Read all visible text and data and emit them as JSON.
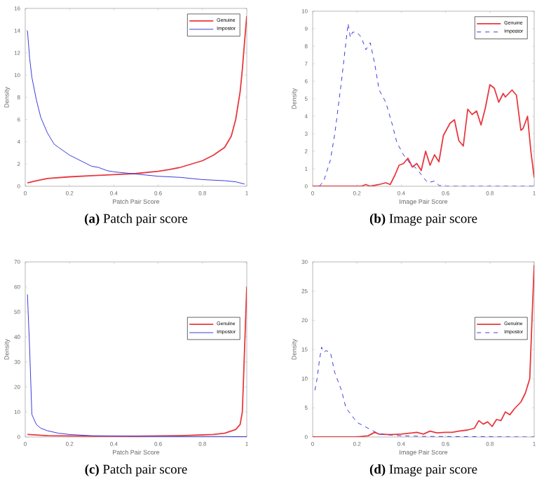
{
  "chart_data": [
    {
      "type": "line",
      "title": "**(a)** Patch pair score",
      "xlabel": "Patch Pair Score",
      "ylabel": "Density",
      "xlim": [
        0,
        1
      ],
      "ylim": [
        0,
        16
      ],
      "xticks": [
        0,
        0.2,
        0.4,
        0.6,
        0.8,
        1
      ],
      "yticks": [
        0,
        2,
        4,
        6,
        8,
        10,
        12,
        14,
        16
      ],
      "legend": "top right",
      "series": [
        {
          "name": "Genuine",
          "color": "#e8383d",
          "line_style": "solid",
          "x": [
            0.01,
            0.05,
            0.1,
            0.2,
            0.3,
            0.4,
            0.5,
            0.6,
            0.65,
            0.7,
            0.75,
            0.8,
            0.85,
            0.9,
            0.93,
            0.95,
            0.97,
            0.98,
            0.99,
            1.0
          ],
          "values": [
            0.3,
            0.5,
            0.7,
            0.85,
            0.95,
            1.05,
            1.15,
            1.35,
            1.5,
            1.7,
            2.0,
            2.3,
            2.8,
            3.5,
            4.5,
            6,
            8.5,
            10.5,
            13,
            15.3
          ]
        },
        {
          "name": "Impostor",
          "color": "#3a3ae0",
          "line_style": "solid",
          "x": [
            0.01,
            0.02,
            0.03,
            0.05,
            0.07,
            0.1,
            0.13,
            0.15,
            0.2,
            0.25,
            0.3,
            0.33,
            0.37,
            0.4,
            0.5,
            0.6,
            0.7,
            0.75,
            0.8,
            0.9,
            0.95,
            0.99
          ],
          "values": [
            14,
            11.5,
            9.8,
            7.8,
            6.2,
            4.8,
            3.8,
            3.5,
            2.8,
            2.3,
            1.8,
            1.7,
            1.4,
            1.3,
            1.1,
            0.9,
            0.8,
            0.7,
            0.6,
            0.5,
            0.4,
            0.2
          ]
        }
      ]
    },
    {
      "type": "line",
      "title": "**(b)** Image pair score",
      "xlabel": "Image Pair Score",
      "ylabel": "Density",
      "xlim": [
        0,
        1
      ],
      "ylim": [
        0,
        10
      ],
      "xticks": [
        0,
        0.2,
        0.4,
        0.6,
        0.8,
        1
      ],
      "yticks": [
        0,
        1,
        2,
        3,
        4,
        5,
        6,
        7,
        8,
        9,
        10
      ],
      "legend": "top right",
      "series": [
        {
          "name": "Genuine",
          "color": "#e8383d",
          "line_style": "solid",
          "x": [
            0,
            0.22,
            0.24,
            0.26,
            0.3,
            0.33,
            0.35,
            0.37,
            0.39,
            0.41,
            0.43,
            0.45,
            0.47,
            0.49,
            0.51,
            0.53,
            0.55,
            0.57,
            0.59,
            0.62,
            0.64,
            0.66,
            0.68,
            0.7,
            0.72,
            0.74,
            0.76,
            0.78,
            0.8,
            0.82,
            0.84,
            0.86,
            0.87,
            0.9,
            0.92,
            0.94,
            0.95,
            0.97,
            0.985,
            1.0
          ],
          "values": [
            0,
            0,
            0.1,
            0,
            0.1,
            0.2,
            0.1,
            0.6,
            1.2,
            1.3,
            1.6,
            1.1,
            1.3,
            0.9,
            2.0,
            1.2,
            1.8,
            1.4,
            2.9,
            3.6,
            3.8,
            2.6,
            2.3,
            4.4,
            4.1,
            4.3,
            3.5,
            4.5,
            5.8,
            5.6,
            4.8,
            5.3,
            5.1,
            5.5,
            5.2,
            3.2,
            3.3,
            4.0,
            2.0,
            0.5
          ]
        },
        {
          "name": "Impostor",
          "color": "#3a3ae0",
          "line_style": "dashed",
          "x": [
            0.03,
            0.05,
            0.08,
            0.1,
            0.13,
            0.16,
            0.17,
            0.18,
            0.2,
            0.22,
            0.24,
            0.26,
            0.28,
            0.3,
            0.33,
            0.36,
            0.38,
            0.41,
            0.44,
            0.47,
            0.5,
            0.52,
            0.55,
            0.57,
            0.6,
            1.0
          ],
          "values": [
            0,
            0.3,
            1.5,
            3,
            6,
            9.3,
            8.5,
            8.8,
            8.8,
            8.5,
            7.8,
            8.2,
            7,
            5.5,
            4.8,
            3.5,
            2.5,
            1.8,
            1.3,
            1,
            0.5,
            0.2,
            0.3,
            0.05,
            0,
            0
          ]
        }
      ]
    },
    {
      "type": "line",
      "title": "**(c)** Patch pair score",
      "xlabel": "Patch Pair Score",
      "ylabel": "Density",
      "xlim": [
        0,
        1
      ],
      "ylim": [
        0,
        70
      ],
      "xticks": [
        0,
        0.2,
        0.4,
        0.6,
        0.8,
        1
      ],
      "yticks": [
        0,
        10,
        20,
        30,
        40,
        50,
        60,
        70
      ],
      "legend": "right",
      "series": [
        {
          "name": "Genuine",
          "color": "#e8383d",
          "line_style": "solid",
          "x": [
            0.01,
            0.1,
            0.3,
            0.5,
            0.7,
            0.85,
            0.9,
            0.95,
            0.97,
            0.98,
            0.99,
            1.0
          ],
          "values": [
            1,
            0.5,
            0.3,
            0.3,
            0.5,
            1,
            1.5,
            3,
            5,
            10,
            35,
            60
          ]
        },
        {
          "name": "Impostor",
          "color": "#3a3ae0",
          "line_style": "solid",
          "x": [
            0.01,
            0.02,
            0.03,
            0.05,
            0.07,
            0.1,
            0.15,
            0.2,
            0.3,
            0.5,
            0.7,
            0.9,
            1.0
          ],
          "values": [
            57,
            35,
            9,
            5,
            3.5,
            2.5,
            1.5,
            1,
            0.5,
            0.3,
            0.2,
            0.2,
            0.1
          ]
        }
      ]
    },
    {
      "type": "line",
      "title": "**(d)** Image pair score",
      "xlabel": "Image Pair Score",
      "ylabel": "Density",
      "xlim": [
        0,
        1
      ],
      "ylim": [
        0,
        30
      ],
      "xticks": [
        0,
        0.2,
        0.4,
        0.6,
        0.8,
        1
      ],
      "yticks": [
        0,
        5,
        10,
        15,
        20,
        25,
        30
      ],
      "legend": "right",
      "series": [
        {
          "name": "Genuine",
          "color": "#e8383d",
          "line_style": "solid",
          "x": [
            0,
            0.2,
            0.25,
            0.28,
            0.3,
            0.35,
            0.4,
            0.45,
            0.47,
            0.5,
            0.53,
            0.56,
            0.6,
            0.63,
            0.66,
            0.7,
            0.73,
            0.75,
            0.77,
            0.79,
            0.81,
            0.83,
            0.85,
            0.87,
            0.89,
            0.91,
            0.94,
            0.96,
            0.98,
            0.99,
            1.0
          ],
          "values": [
            0,
            0,
            0.2,
            0.8,
            0.5,
            0.4,
            0.5,
            0.7,
            0.8,
            0.5,
            1.0,
            0.7,
            0.8,
            0.8,
            1.0,
            1.2,
            1.5,
            2.8,
            2.2,
            2.6,
            1.8,
            3.0,
            2.8,
            4.3,
            3.8,
            4.8,
            6,
            7.5,
            10,
            20,
            29.5
          ]
        },
        {
          "name": "Impostor",
          "color": "#3a3ae0",
          "line_style": "dashed",
          "x": [
            0.01,
            0.02,
            0.03,
            0.04,
            0.05,
            0.06,
            0.08,
            0.1,
            0.13,
            0.15,
            0.2,
            0.25,
            0.3,
            0.4,
            0.5,
            1.0
          ],
          "values": [
            8,
            10,
            13,
            15.4,
            14.5,
            14.8,
            14.5,
            11,
            8,
            5,
            2.5,
            1.5,
            0.5,
            0.2,
            0.1,
            0
          ]
        }
      ]
    }
  ]
}
